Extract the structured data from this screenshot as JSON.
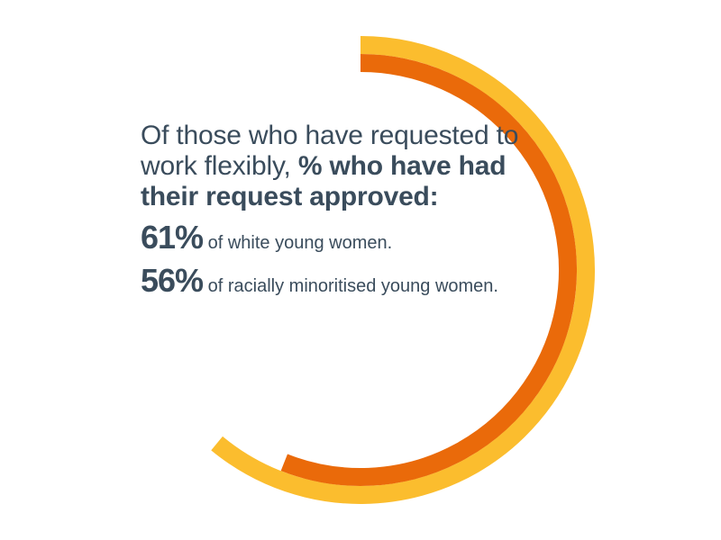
{
  "headline": {
    "line_normal": "Of those who have requested to work flexibly, ",
    "line_bold": "% who have had their request approved:"
  },
  "stats": [
    {
      "value": "61%",
      "label": "of white young women."
    },
    {
      "value": "56%",
      "label": "of racially minoritised young women."
    }
  ],
  "colors": {
    "text": "#3a4c5c",
    "outer_ring": "#fbbd2e",
    "inner_ring": "#ea6a0a"
  },
  "chart_data": {
    "type": "radial_bar",
    "title": "",
    "series": [
      {
        "name": "white young women",
        "value": 61,
        "color": "#fbbd2e"
      },
      {
        "name": "racially minoritised young women",
        "value": 56,
        "color": "#ea6a0a"
      }
    ],
    "unit": "%",
    "max": 100
  }
}
